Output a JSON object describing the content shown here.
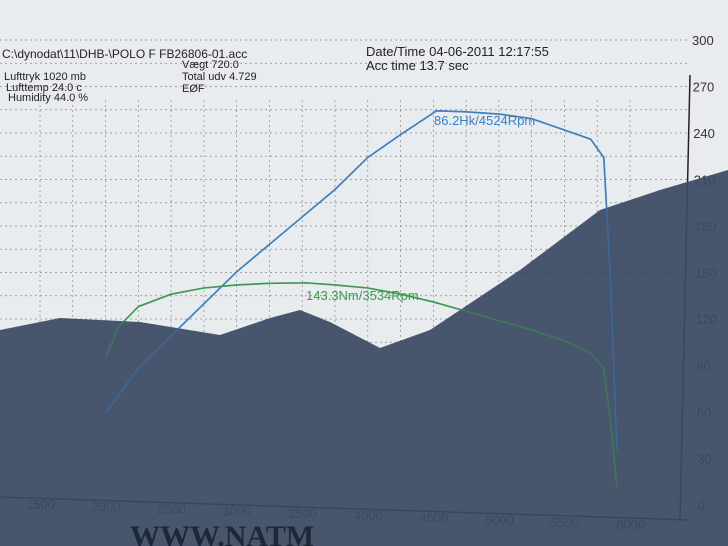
{
  "header": {
    "file": "C:\\dynodat\\11\\DHB-\\POLO F FB26806-01.acc",
    "lufttryk": "Lufttryk  1020 mb",
    "lufttemp": "Lufttemp  24.0 c",
    "humidity": "Humidity  44.0 %",
    "vaegt": "Vægt     720.0",
    "total_udv": "Total udv 4.729",
    "eof": "EØF",
    "datetime": "Date/Time  04-06-2011 12:17:55",
    "acc_time": "Acc time  13.7 sec"
  },
  "footer_text": "WWW.NATM",
  "colors": {
    "power": "#3b7fc4",
    "torque": "#3f9a50",
    "paper": "#e9ecef",
    "shadow": "#3b4a63"
  },
  "chart_data": {
    "type": "line",
    "xlabel": "",
    "ylabel": "",
    "xlim": [
      1500,
      6000
    ],
    "ylim": [
      0,
      300
    ],
    "grid": true,
    "x_ticks": [
      "1500",
      "2000",
      "2500",
      "3000",
      "3500",
      "4000",
      "4500",
      "5000",
      "5500",
      "6000"
    ],
    "y_ticks": [
      "0",
      "30",
      "60",
      "90",
      "120",
      "150",
      "180",
      "210",
      "240",
      "270",
      "300"
    ],
    "series": [
      {
        "name": "Hk",
        "axis": "left",
        "annotation": "86.2Hk/4524Rpm",
        "x": [
          2000,
          2250,
          2500,
          2750,
          3000,
          3250,
          3500,
          3750,
          4000,
          4250,
          4524,
          4750,
          5000,
          5250,
          5500,
          5700,
          5800,
          5850,
          5900
        ],
        "y": [
          20,
          30,
          37,
          44,
          51,
          57,
          63,
          69,
          76,
          81,
          86.2,
          86,
          85.5,
          84.5,
          82,
          80,
          76,
          50,
          12
        ]
      },
      {
        "name": "Nm",
        "axis": "right",
        "annotation": "143.3Nm/3534Rpm",
        "x": [
          2000,
          2100,
          2250,
          2500,
          2750,
          3000,
          3250,
          3534,
          3750,
          4000,
          4250,
          4500,
          4750,
          5000,
          5250,
          5500,
          5700,
          5800,
          5850,
          5900
        ],
        "y": [
          95,
          115,
          128,
          136,
          140,
          142,
          143,
          143.3,
          142,
          140,
          136,
          131,
          125,
          119,
          113,
          106,
          98,
          88,
          55,
          12
        ]
      }
    ]
  }
}
